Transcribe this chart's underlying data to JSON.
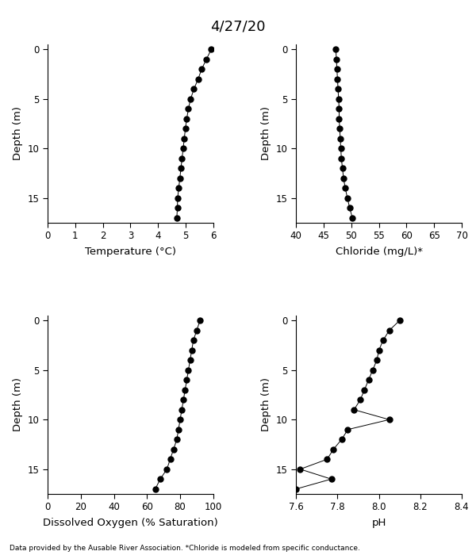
{
  "title": "4/27/20",
  "footnote": "Data provided by the Ausable River Association. *Chloride is modeled from specific conductance.",
  "depth": [
    0,
    1,
    2,
    3,
    4,
    5,
    6,
    7,
    8,
    9,
    10,
    11,
    12,
    13,
    14,
    15,
    16,
    17
  ],
  "temperature": [
    5.93,
    5.75,
    5.58,
    5.45,
    5.3,
    5.18,
    5.1,
    5.04,
    4.99,
    4.95,
    4.91,
    4.87,
    4.83,
    4.79,
    4.75,
    4.71,
    4.7,
    4.68
  ],
  "chloride": [
    47.2,
    47.3,
    47.4,
    47.5,
    47.6,
    47.7,
    47.8,
    47.8,
    47.9,
    48.0,
    48.1,
    48.2,
    48.4,
    48.6,
    48.9,
    49.3,
    49.7,
    50.2
  ],
  "do_sat": [
    92,
    90,
    88,
    87,
    86,
    85,
    84,
    83,
    82,
    81,
    80,
    79,
    78,
    76,
    74,
    72,
    68,
    65
  ],
  "ph": [
    8.1,
    8.05,
    8.02,
    8.0,
    7.99,
    7.97,
    7.95,
    7.93,
    7.91,
    7.88,
    8.05,
    7.85,
    7.82,
    7.78,
    7.75,
    7.62,
    7.77,
    7.6
  ],
  "temp_xlim": [
    0,
    6
  ],
  "temp_xticks": [
    0,
    1,
    2,
    3,
    4,
    5,
    6
  ],
  "chloride_xlim": [
    40,
    70
  ],
  "chloride_xticks": [
    40,
    45,
    50,
    55,
    60,
    65,
    70
  ],
  "do_xlim": [
    0,
    100
  ],
  "do_xticks": [
    0,
    20,
    40,
    60,
    80,
    100
  ],
  "ph_xlim": [
    7.6,
    8.4
  ],
  "ph_xticks": [
    7.6,
    7.8,
    8.0,
    8.2,
    8.4
  ],
  "ylim": [
    17.5,
    -0.5
  ],
  "yticks": [
    0,
    5,
    10,
    15
  ],
  "temp_xlabel": "Temperature (°C)",
  "chloride_xlabel": "Chloride (mg/L)*",
  "do_xlabel": "Dissolved Oxygen (% Saturation)",
  "ph_xlabel": "pH",
  "ylabel": "Depth (m)"
}
